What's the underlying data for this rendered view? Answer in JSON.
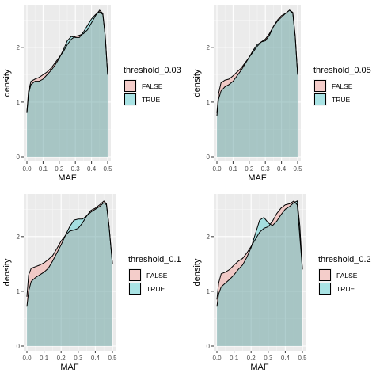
{
  "chart_data": [
    {
      "type": "area",
      "xlabel": "MAF",
      "ylabel": "density",
      "xlim": [
        0.0,
        0.5
      ],
      "ylim": [
        0,
        2.75
      ],
      "x_ticks": [
        "0.0",
        "0.1",
        "0.2",
        "0.3",
        "0.4",
        "0.5"
      ],
      "y_ticks": [
        "0",
        "1",
        "2"
      ],
      "legend_title": "threshold_0.03",
      "legend_position": "right",
      "grid": true,
      "series": [
        {
          "name": "FALSE",
          "color": "#F8766D",
          "x": [
            0.0,
            0.01,
            0.025,
            0.05,
            0.075,
            0.1,
            0.125,
            0.15,
            0.175,
            0.2,
            0.225,
            0.25,
            0.275,
            0.3,
            0.325,
            0.35,
            0.375,
            0.4,
            0.425,
            0.45,
            0.47,
            0.485,
            0.5
          ],
          "y": [
            0.82,
            1.2,
            1.38,
            1.42,
            1.45,
            1.5,
            1.55,
            1.62,
            1.72,
            1.82,
            1.92,
            2.05,
            2.15,
            2.2,
            2.22,
            2.25,
            2.32,
            2.45,
            2.58,
            2.68,
            2.62,
            2.2,
            1.5
          ]
        },
        {
          "name": "TRUE",
          "color": "#00BFC4",
          "x": [
            0.0,
            0.01,
            0.025,
            0.05,
            0.075,
            0.1,
            0.125,
            0.15,
            0.175,
            0.2,
            0.225,
            0.25,
            0.275,
            0.3,
            0.325,
            0.35,
            0.375,
            0.4,
            0.425,
            0.45,
            0.47,
            0.485,
            0.5
          ],
          "y": [
            0.8,
            1.15,
            1.32,
            1.38,
            1.38,
            1.42,
            1.5,
            1.58,
            1.68,
            1.8,
            1.95,
            2.12,
            2.2,
            2.18,
            2.18,
            2.28,
            2.4,
            2.52,
            2.6,
            2.65,
            2.6,
            2.2,
            1.5
          ]
        }
      ]
    },
    {
      "type": "area",
      "xlabel": "MAF",
      "ylabel": "density",
      "xlim": [
        0.0,
        0.5
      ],
      "ylim": [
        0,
        2.75
      ],
      "x_ticks": [
        "0.0",
        "0.1",
        "0.2",
        "0.3",
        "0.4",
        "0.5"
      ],
      "y_ticks": [
        "0",
        "1",
        "2"
      ],
      "legend_title": "threshold_0.05",
      "legend_position": "right",
      "grid": true,
      "series": [
        {
          "name": "FALSE",
          "color": "#F8766D",
          "x": [
            0.0,
            0.01,
            0.025,
            0.05,
            0.075,
            0.1,
            0.125,
            0.15,
            0.175,
            0.2,
            0.225,
            0.25,
            0.275,
            0.3,
            0.325,
            0.35,
            0.375,
            0.4,
            0.425,
            0.45,
            0.47,
            0.485,
            0.5
          ],
          "y": [
            0.8,
            1.15,
            1.35,
            1.4,
            1.42,
            1.48,
            1.55,
            1.62,
            1.72,
            1.82,
            1.92,
            2.02,
            2.1,
            2.15,
            2.25,
            2.38,
            2.5,
            2.58,
            2.62,
            2.68,
            2.64,
            2.2,
            1.5
          ]
        },
        {
          "name": "TRUE",
          "color": "#00BFC4",
          "x": [
            0.0,
            0.01,
            0.025,
            0.05,
            0.075,
            0.1,
            0.125,
            0.15,
            0.175,
            0.2,
            0.225,
            0.25,
            0.275,
            0.3,
            0.325,
            0.35,
            0.375,
            0.4,
            0.425,
            0.45,
            0.47,
            0.485,
            0.5
          ],
          "y": [
            0.75,
            1.05,
            1.2,
            1.28,
            1.32,
            1.38,
            1.48,
            1.58,
            1.7,
            1.82,
            1.95,
            2.05,
            2.1,
            2.12,
            2.22,
            2.38,
            2.48,
            2.55,
            2.62,
            2.68,
            2.62,
            2.2,
            1.5
          ]
        }
      ]
    },
    {
      "type": "area",
      "xlabel": "MAF",
      "ylabel": "density",
      "xlim": [
        0.0,
        0.5
      ],
      "ylim": [
        0,
        2.75
      ],
      "x_ticks": [
        "0.0",
        "0.1",
        "0.2",
        "0.3",
        "0.4",
        "0.5"
      ],
      "y_ticks": [
        "0",
        "1",
        "2"
      ],
      "legend_title": "threshold_0.1",
      "legend_position": "right",
      "grid": true,
      "series": [
        {
          "name": "FALSE",
          "color": "#F8766D",
          "x": [
            0.0,
            0.01,
            0.025,
            0.05,
            0.075,
            0.1,
            0.125,
            0.15,
            0.175,
            0.2,
            0.225,
            0.25,
            0.275,
            0.3,
            0.325,
            0.35,
            0.375,
            0.4,
            0.425,
            0.45,
            0.465,
            0.48,
            0.5
          ],
          "y": [
            0.9,
            1.3,
            1.42,
            1.45,
            1.48,
            1.52,
            1.58,
            1.65,
            1.78,
            1.92,
            2.02,
            2.1,
            2.12,
            2.15,
            2.25,
            2.38,
            2.48,
            2.52,
            2.58,
            2.65,
            2.6,
            2.2,
            1.5
          ]
        },
        {
          "name": "TRUE",
          "color": "#00BFC4",
          "x": [
            0.0,
            0.01,
            0.025,
            0.05,
            0.075,
            0.1,
            0.125,
            0.15,
            0.175,
            0.2,
            0.225,
            0.25,
            0.275,
            0.3,
            0.325,
            0.35,
            0.375,
            0.4,
            0.425,
            0.45,
            0.465,
            0.48,
            0.5
          ],
          "y": [
            0.72,
            1.0,
            1.18,
            1.25,
            1.3,
            1.35,
            1.42,
            1.55,
            1.7,
            1.85,
            2.02,
            2.18,
            2.3,
            2.32,
            2.32,
            2.38,
            2.45,
            2.5,
            2.55,
            2.62,
            2.58,
            2.2,
            1.5
          ]
        }
      ]
    },
    {
      "type": "area",
      "xlabel": "MAF",
      "ylabel": "density",
      "xlim": [
        0.0,
        0.5
      ],
      "ylim": [
        0,
        2.75
      ],
      "x_ticks": [
        "0.0",
        "0.1",
        "0.2",
        "0.3",
        "0.4",
        "0.5"
      ],
      "y_ticks": [
        "0",
        "1",
        "2"
      ],
      "legend_title": "threshold_0.2",
      "legend_position": "right",
      "grid": true,
      "series": [
        {
          "name": "FALSE",
          "color": "#F8766D",
          "x": [
            0.0,
            0.01,
            0.025,
            0.05,
            0.075,
            0.1,
            0.125,
            0.15,
            0.175,
            0.2,
            0.225,
            0.25,
            0.275,
            0.3,
            0.325,
            0.35,
            0.375,
            0.4,
            0.425,
            0.45,
            0.47,
            0.485,
            0.5
          ],
          "y": [
            0.85,
            1.15,
            1.32,
            1.35,
            1.4,
            1.48,
            1.55,
            1.6,
            1.7,
            1.82,
            1.95,
            2.08,
            2.15,
            2.18,
            2.28,
            2.42,
            2.52,
            2.58,
            2.6,
            2.65,
            2.58,
            2.0,
            1.4
          ]
        },
        {
          "name": "TRUE",
          "color": "#00BFC4",
          "x": [
            0.0,
            0.01,
            0.025,
            0.05,
            0.075,
            0.1,
            0.125,
            0.15,
            0.175,
            0.2,
            0.225,
            0.25,
            0.275,
            0.3,
            0.325,
            0.35,
            0.375,
            0.4,
            0.425,
            0.45,
            0.47,
            0.485,
            0.5
          ],
          "y": [
            0.72,
            0.95,
            1.08,
            1.15,
            1.22,
            1.3,
            1.4,
            1.48,
            1.62,
            1.8,
            2.05,
            2.3,
            2.35,
            2.25,
            2.2,
            2.28,
            2.4,
            2.5,
            2.55,
            2.62,
            2.65,
            2.2,
            1.4
          ]
        }
      ]
    }
  ]
}
